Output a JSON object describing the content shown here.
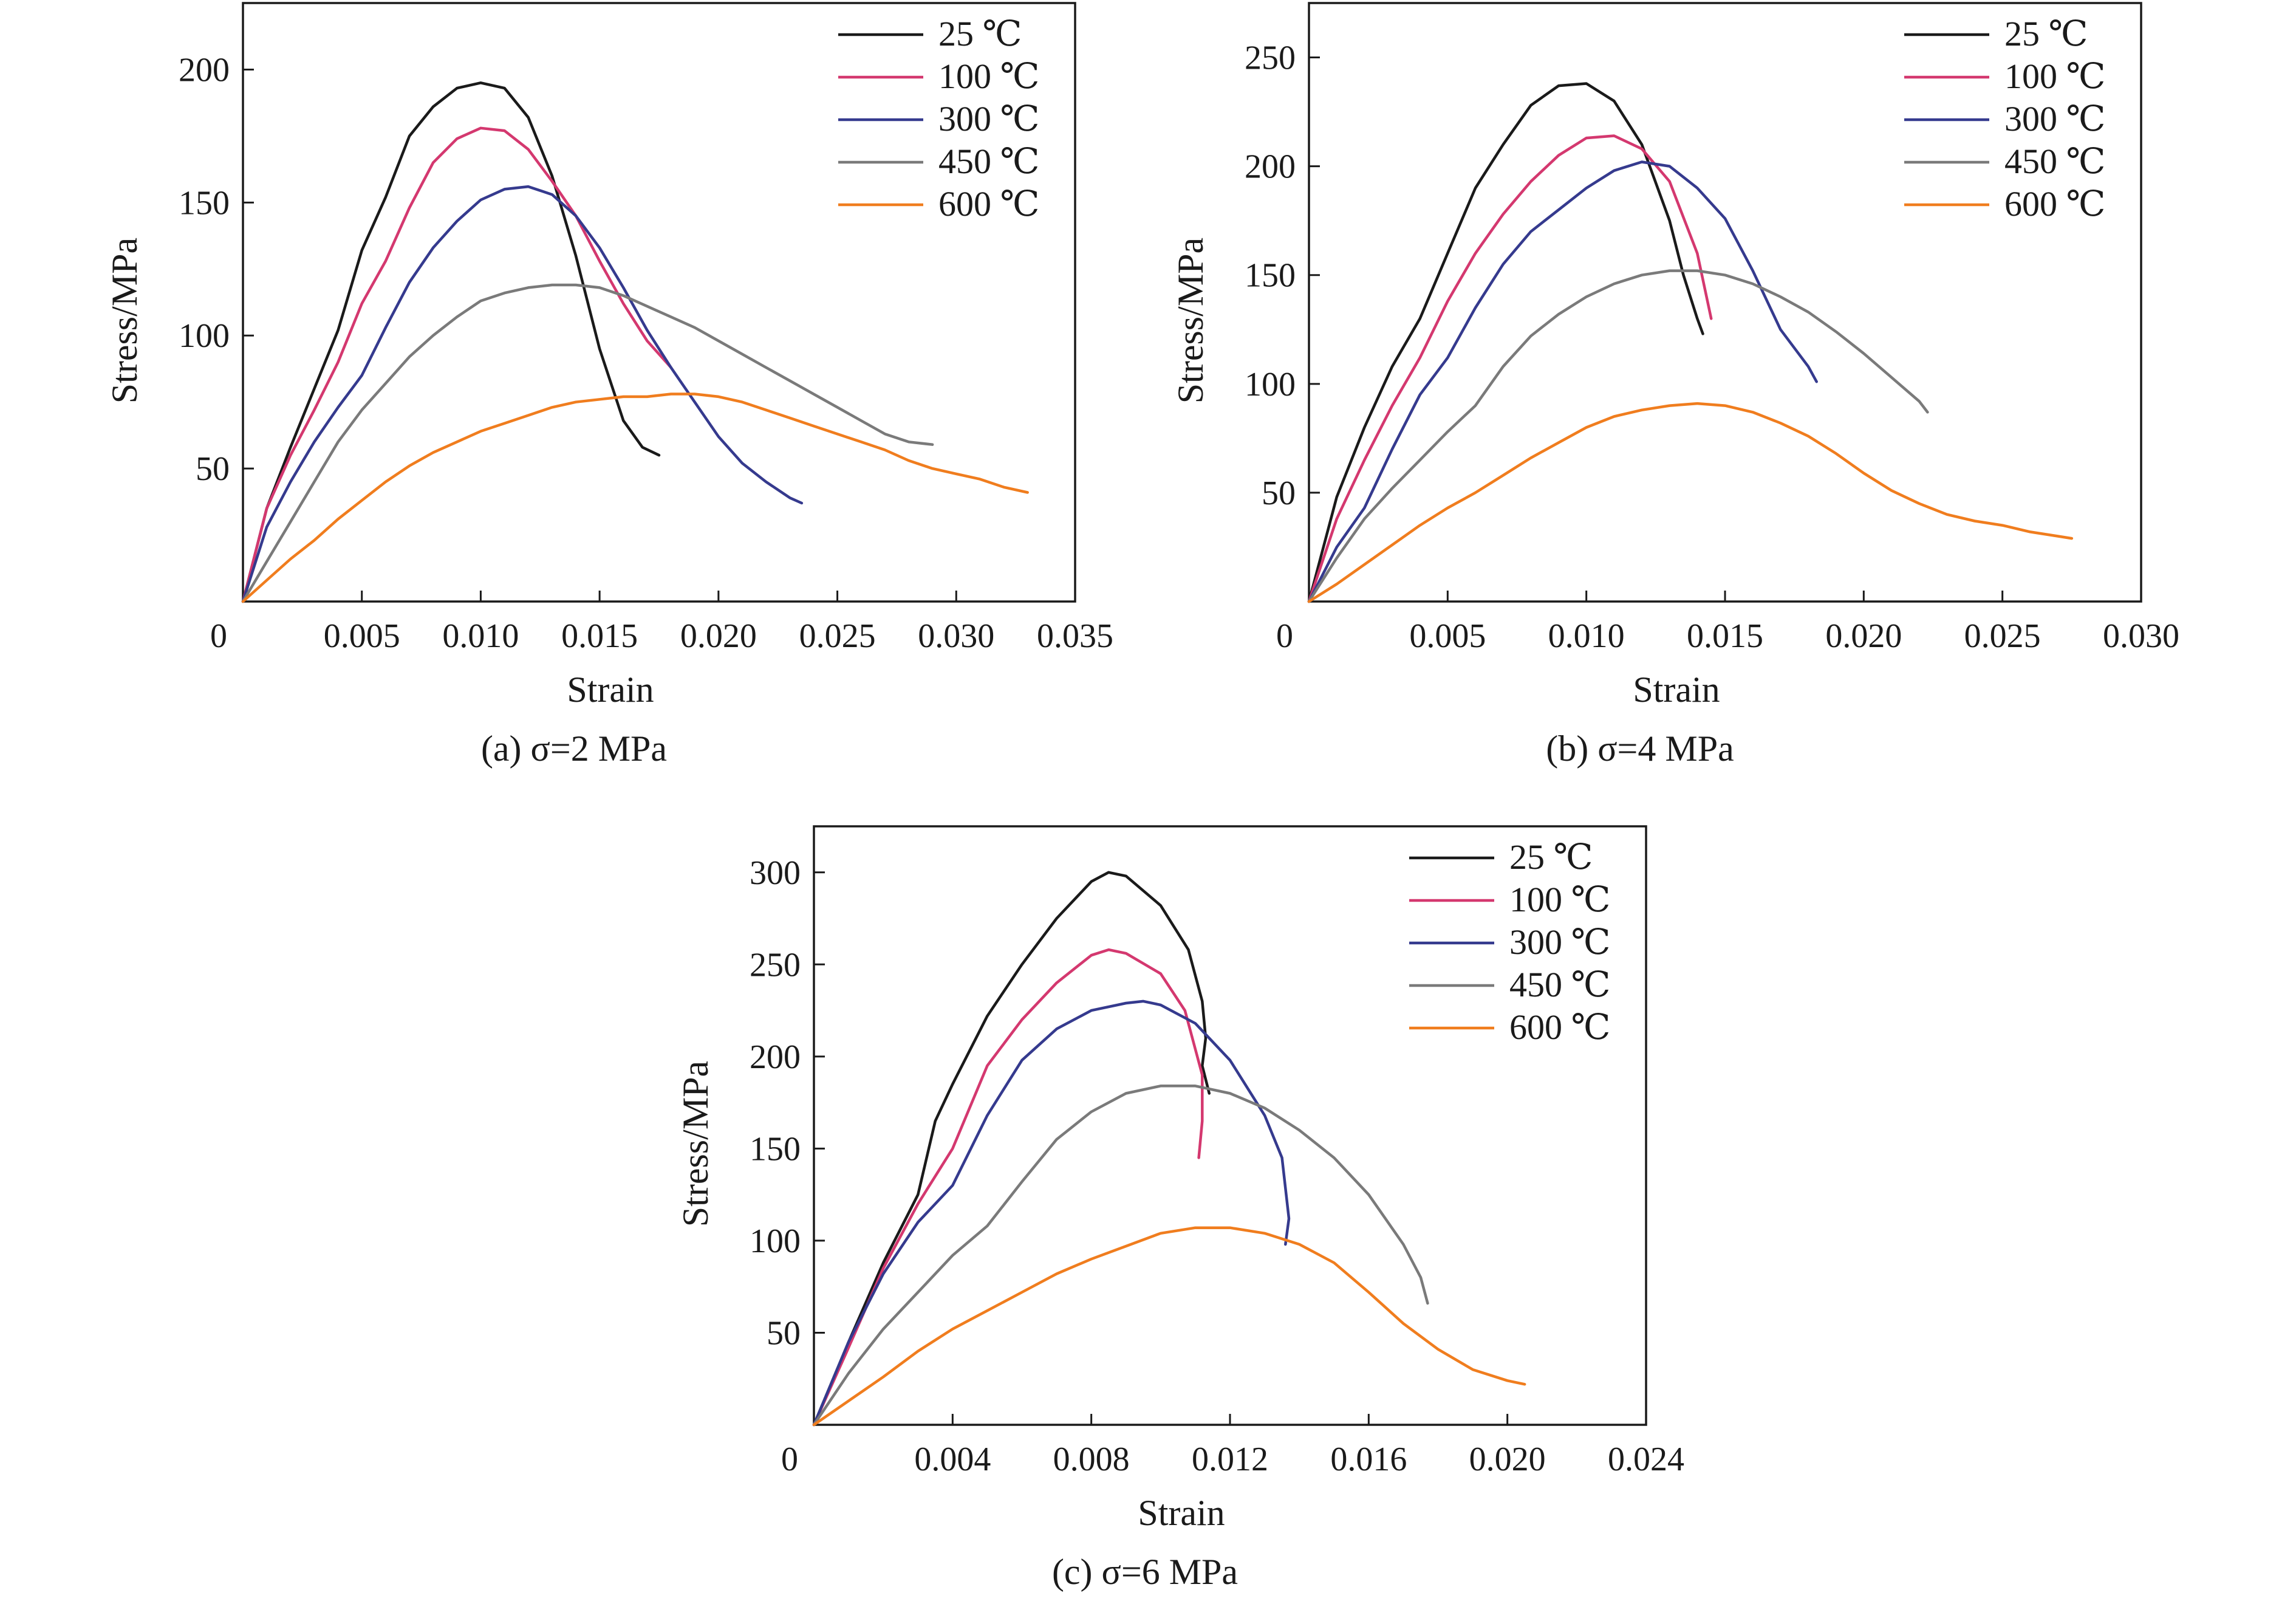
{
  "colors": {
    "25 ℃": "#1a1a1a",
    "100 ℃": "#d4386f",
    "300 ℃": "#353a8e",
    "450 ℃": "#7a7a7a",
    "600 ℃": "#f07d1e"
  },
  "chart_data": [
    {
      "id": "a",
      "type": "line",
      "caption": "(a) σ=2 MPa",
      "xlabel": "Strain",
      "ylabel": "Stress/MPa",
      "xlim": [
        0,
        0.035
      ],
      "ylim": [
        0,
        225
      ],
      "xticks": [
        0,
        0.005,
        0.01,
        0.015,
        0.02,
        0.025,
        0.03,
        0.035
      ],
      "xtick_labels": [
        "0",
        "0.005",
        "0.010",
        "0.015",
        "0.020",
        "0.025",
        "0.030",
        "0.035"
      ],
      "yticks": [
        50,
        100,
        150,
        200
      ],
      "ytick_labels": [
        "50",
        "100",
        "150",
        "200"
      ],
      "legend": "top-right",
      "series": [
        {
          "name": "25 ℃",
          "x": [
            0,
            0.001,
            0.002,
            0.003,
            0.004,
            0.005,
            0.006,
            0.007,
            0.008,
            0.009,
            0.01,
            0.011,
            0.012,
            0.013,
            0.014,
            0.015,
            0.016,
            0.0168,
            0.0175
          ],
          "y": [
            0,
            35,
            58,
            80,
            102,
            132,
            152,
            175,
            186,
            193,
            195,
            193,
            182,
            160,
            130,
            95,
            68,
            58,
            55
          ]
        },
        {
          "name": "100 ℃",
          "x": [
            0,
            0.001,
            0.002,
            0.003,
            0.004,
            0.005,
            0.006,
            0.007,
            0.008,
            0.009,
            0.01,
            0.011,
            0.012,
            0.013,
            0.014,
            0.015,
            0.016,
            0.017,
            0.018
          ],
          "y": [
            0,
            35,
            55,
            72,
            90,
            112,
            128,
            148,
            165,
            174,
            178,
            177,
            170,
            158,
            145,
            128,
            112,
            98,
            88
          ]
        },
        {
          "name": "300 ℃",
          "x": [
            0,
            0.001,
            0.002,
            0.003,
            0.004,
            0.005,
            0.006,
            0.007,
            0.008,
            0.009,
            0.01,
            0.011,
            0.012,
            0.013,
            0.014,
            0.015,
            0.016,
            0.017,
            0.018,
            0.019,
            0.02,
            0.021,
            0.022,
            0.023,
            0.0235
          ],
          "y": [
            0,
            28,
            45,
            60,
            73,
            85,
            103,
            120,
            133,
            143,
            151,
            155,
            156,
            153,
            145,
            133,
            118,
            102,
            88,
            75,
            62,
            52,
            45,
            39,
            37
          ]
        },
        {
          "name": "450 ℃",
          "x": [
            0,
            0.001,
            0.002,
            0.003,
            0.004,
            0.005,
            0.006,
            0.007,
            0.008,
            0.009,
            0.01,
            0.011,
            0.012,
            0.013,
            0.014,
            0.015,
            0.016,
            0.017,
            0.018,
            0.019,
            0.02,
            0.021,
            0.022,
            0.023,
            0.024,
            0.025,
            0.026,
            0.027,
            0.028,
            0.029
          ],
          "y": [
            0,
            15,
            30,
            45,
            60,
            72,
            82,
            92,
            100,
            107,
            113,
            116,
            118,
            119,
            119,
            118,
            115,
            111,
            107,
            103,
            98,
            93,
            88,
            83,
            78,
            73,
            68,
            63,
            60,
            59
          ]
        },
        {
          "name": "600 ℃",
          "x": [
            0,
            0.001,
            0.002,
            0.003,
            0.004,
            0.005,
            0.006,
            0.007,
            0.008,
            0.009,
            0.01,
            0.011,
            0.012,
            0.013,
            0.014,
            0.015,
            0.016,
            0.017,
            0.018,
            0.019,
            0.02,
            0.021,
            0.022,
            0.023,
            0.024,
            0.025,
            0.026,
            0.027,
            0.028,
            0.029,
            0.03,
            0.031,
            0.032,
            0.033
          ],
          "y": [
            0,
            8,
            16,
            23,
            31,
            38,
            45,
            51,
            56,
            60,
            64,
            67,
            70,
            73,
            75,
            76,
            77,
            77,
            78,
            78,
            77,
            75,
            72,
            69,
            66,
            63,
            60,
            57,
            53,
            50,
            48,
            46,
            43,
            41
          ]
        }
      ]
    },
    {
      "id": "b",
      "type": "line",
      "caption": "(b) σ=4 MPa",
      "xlabel": "Strain",
      "ylabel": "Stress/MPa",
      "xlim": [
        0,
        0.03
      ],
      "ylim": [
        0,
        275
      ],
      "xticks": [
        0,
        0.005,
        0.01,
        0.015,
        0.02,
        0.025,
        0.03
      ],
      "xtick_labels": [
        "0",
        "0.005",
        "0.010",
        "0.015",
        "0.020",
        "0.025",
        "0.030"
      ],
      "yticks": [
        50,
        100,
        150,
        200,
        250
      ],
      "ytick_labels": [
        "50",
        "100",
        "150",
        "200",
        "250"
      ],
      "legend": "top-right",
      "series": [
        {
          "name": "25 ℃",
          "x": [
            0,
            0.001,
            0.002,
            0.003,
            0.004,
            0.005,
            0.006,
            0.007,
            0.008,
            0.009,
            0.01,
            0.011,
            0.012,
            0.013,
            0.0135,
            0.014,
            0.0142
          ],
          "y": [
            0,
            48,
            80,
            108,
            130,
            160,
            190,
            210,
            228,
            237,
            238,
            230,
            210,
            175,
            150,
            130,
            123
          ]
        },
        {
          "name": "100 ℃",
          "x": [
            0,
            0.001,
            0.002,
            0.003,
            0.004,
            0.005,
            0.006,
            0.007,
            0.008,
            0.009,
            0.01,
            0.011,
            0.012,
            0.013,
            0.014,
            0.0145
          ],
          "y": [
            0,
            38,
            65,
            90,
            112,
            138,
            160,
            178,
            193,
            205,
            213,
            214,
            208,
            193,
            160,
            130
          ]
        },
        {
          "name": "300 ℃",
          "x": [
            0,
            0.001,
            0.002,
            0.003,
            0.004,
            0.005,
            0.006,
            0.007,
            0.008,
            0.009,
            0.01,
            0.011,
            0.012,
            0.013,
            0.014,
            0.015,
            0.016,
            0.017,
            0.018,
            0.0183
          ],
          "y": [
            0,
            25,
            43,
            70,
            95,
            112,
            135,
            155,
            170,
            180,
            190,
            198,
            202,
            200,
            190,
            176,
            152,
            125,
            108,
            101
          ]
        },
        {
          "name": "450 ℃",
          "x": [
            0,
            0.001,
            0.002,
            0.003,
            0.004,
            0.005,
            0.006,
            0.007,
            0.008,
            0.009,
            0.01,
            0.011,
            0.012,
            0.013,
            0.014,
            0.015,
            0.016,
            0.017,
            0.018,
            0.019,
            0.02,
            0.021,
            0.022,
            0.0223
          ],
          "y": [
            0,
            20,
            38,
            52,
            65,
            78,
            90,
            108,
            122,
            132,
            140,
            146,
            150,
            152,
            152,
            150,
            146,
            140,
            133,
            124,
            114,
            103,
            92,
            87
          ]
        },
        {
          "name": "600 ℃",
          "x": [
            0,
            0.001,
            0.002,
            0.003,
            0.004,
            0.005,
            0.006,
            0.007,
            0.008,
            0.009,
            0.01,
            0.011,
            0.012,
            0.013,
            0.014,
            0.015,
            0.016,
            0.017,
            0.018,
            0.019,
            0.02,
            0.021,
            0.022,
            0.023,
            0.024,
            0.025,
            0.026,
            0.027,
            0.0275
          ],
          "y": [
            0,
            8,
            17,
            26,
            35,
            43,
            50,
            58,
            66,
            73,
            80,
            85,
            88,
            90,
            91,
            90,
            87,
            82,
            76,
            68,
            59,
            51,
            45,
            40,
            37,
            35,
            32,
            30,
            29
          ]
        }
      ]
    },
    {
      "id": "c",
      "type": "line",
      "caption": "(c) σ=6 MPa",
      "xlabel": "Strain",
      "ylabel": "Stress/MPa",
      "xlim": [
        0,
        0.024
      ],
      "ylim": [
        0,
        325
      ],
      "xticks": [
        0,
        0.004,
        0.008,
        0.012,
        0.016,
        0.02,
        0.024
      ],
      "xtick_labels": [
        "0",
        "0.004",
        "0.008",
        "0.012",
        "0.016",
        "0.020",
        "0.024"
      ],
      "yticks": [
        50,
        100,
        150,
        200,
        250,
        300
      ],
      "ytick_labels": [
        "50",
        "100",
        "150",
        "200",
        "250",
        "300"
      ],
      "legend": "top-right",
      "series": [
        {
          "name": "25 ℃",
          "x": [
            0,
            0.001,
            0.002,
            0.003,
            0.0035,
            0.004,
            0.005,
            0.006,
            0.007,
            0.008,
            0.0085,
            0.009,
            0.01,
            0.0108,
            0.0112,
            0.0113,
            0.0112,
            0.0114
          ],
          "y": [
            0,
            45,
            88,
            125,
            165,
            185,
            222,
            250,
            275,
            295,
            300,
            298,
            282,
            258,
            230,
            210,
            195,
            180
          ]
        },
        {
          "name": "100 ℃",
          "x": [
            0,
            0.001,
            0.002,
            0.003,
            0.004,
            0.005,
            0.006,
            0.007,
            0.008,
            0.0085,
            0.009,
            0.01,
            0.0107,
            0.0112,
            0.0112,
            0.0111
          ],
          "y": [
            0,
            42,
            85,
            120,
            150,
            195,
            220,
            240,
            255,
            258,
            256,
            245,
            225,
            190,
            165,
            145
          ]
        },
        {
          "name": "300 ℃",
          "x": [
            0,
            0.001,
            0.002,
            0.003,
            0.004,
            0.005,
            0.006,
            0.007,
            0.008,
            0.009,
            0.0095,
            0.01,
            0.011,
            0.012,
            0.013,
            0.0135,
            0.0137,
            0.0136
          ],
          "y": [
            0,
            45,
            82,
            110,
            130,
            168,
            198,
            215,
            225,
            229,
            230,
            228,
            218,
            198,
            168,
            145,
            112,
            98
          ]
        },
        {
          "name": "450 ℃",
          "x": [
            0,
            0.001,
            0.002,
            0.003,
            0.004,
            0.005,
            0.006,
            0.007,
            0.008,
            0.009,
            0.01,
            0.011,
            0.012,
            0.013,
            0.014,
            0.015,
            0.016,
            0.017,
            0.0175,
            0.0177
          ],
          "y": [
            0,
            28,
            52,
            72,
            92,
            108,
            132,
            155,
            170,
            180,
            184,
            184,
            180,
            172,
            160,
            145,
            125,
            98,
            80,
            66
          ]
        },
        {
          "name": "600 ℃",
          "x": [
            0,
            0.001,
            0.002,
            0.003,
            0.004,
            0.005,
            0.006,
            0.007,
            0.008,
            0.009,
            0.01,
            0.011,
            0.012,
            0.013,
            0.014,
            0.015,
            0.016,
            0.017,
            0.018,
            0.019,
            0.02,
            0.0205
          ],
          "y": [
            0,
            13,
            26,
            40,
            52,
            62,
            72,
            82,
            90,
            97,
            104,
            107,
            107,
            104,
            98,
            88,
            72,
            55,
            41,
            30,
            24,
            22
          ]
        }
      ]
    }
  ]
}
